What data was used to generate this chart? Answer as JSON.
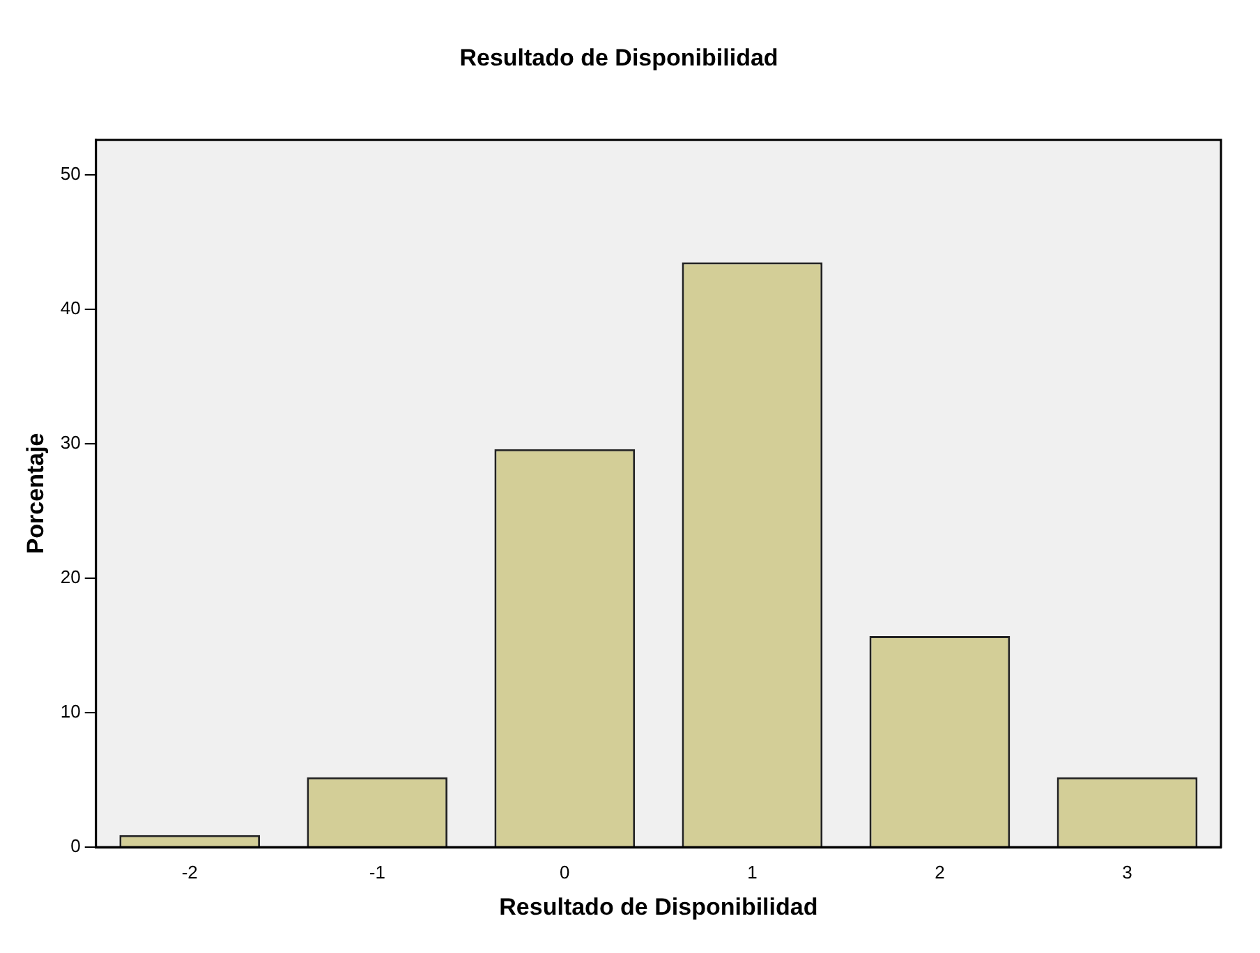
{
  "chart_data": {
    "type": "bar",
    "title": "Resultado de Disponibilidad",
    "xlabel": "Resultado de Disponibilidad",
    "ylabel": "Porcentaje",
    "categories": [
      "-2",
      "-1",
      "0",
      "1",
      "2",
      "3"
    ],
    "values": [
      0.9,
      5.2,
      29.6,
      43.5,
      15.7,
      5.2
    ],
    "color": "#d3ce97",
    "ylim": [
      0,
      52.6
    ],
    "yticks": [
      0,
      10,
      20,
      30,
      40,
      50
    ],
    "grid": false,
    "legend": false
  }
}
